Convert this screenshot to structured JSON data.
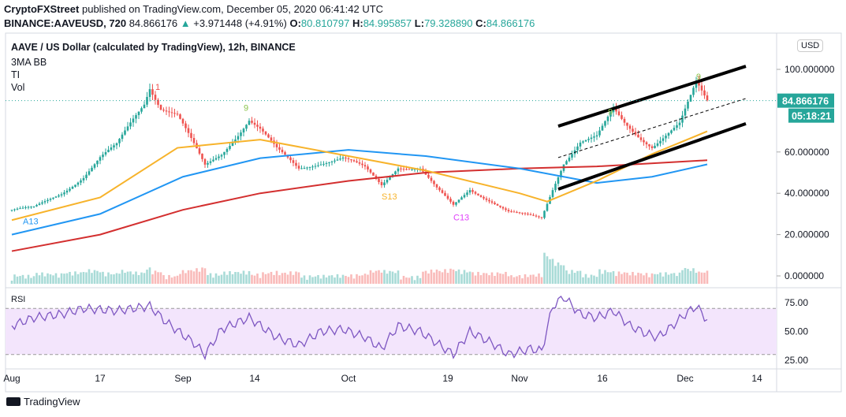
{
  "header": {
    "publisher": "CryptoFXStreet",
    "published_text": "published on TradingView.com, December 05, 2020 06:41:42 UTC",
    "symbol": "BINANCE:AAVEUSD, 720",
    "last": "84.866176",
    "change": "+3.971448 (+4.91%)",
    "o_label": "O:",
    "o": "80.810797",
    "h_label": "H:",
    "h": "84.995857",
    "l_label": "L:",
    "l": "79.328890",
    "c_label": "C:",
    "c": "84.866176"
  },
  "legend": {
    "title": "AAVE / US Dollar (calculated by TradingView), 12h, BINANCE",
    "ind1": "3MA BB",
    "ind2": "TI",
    "ind3": "Vol"
  },
  "currency_button": "USD",
  "price_badge": "84.866176",
  "countdown": "05:18:21",
  "rsi_label": "RSI",
  "footer_logo": "TradingView",
  "colors": {
    "up": "#26a69a",
    "down": "#ef5350",
    "ma_orange": "#f7b32b",
    "ma_blue": "#2196f3",
    "ma_red": "#d32f2f",
    "rsi": "#7e57c2",
    "rsi_band": "#f3e5fc"
  },
  "chart_data": {
    "type": "candlestick",
    "x_ticks": [
      {
        "date": "2020-08-01",
        "label": "Aug"
      },
      {
        "date": "2020-08-17",
        "label": "17"
      },
      {
        "date": "2020-09-01",
        "label": "Sep"
      },
      {
        "date": "2020-09-14",
        "label": "14"
      },
      {
        "date": "2020-10-01",
        "label": "Oct"
      },
      {
        "date": "2020-10-19",
        "label": "19"
      },
      {
        "date": "2020-11-01",
        "label": "Nov"
      },
      {
        "date": "2020-11-16",
        "label": "16"
      },
      {
        "date": "2020-12-01",
        "label": "Dec"
      },
      {
        "date": "2020-12-14",
        "label": "14"
      }
    ],
    "y_ticks": [
      {
        "v": 100,
        "label": "100.000000"
      },
      {
        "v": 60,
        "label": "60.000000"
      },
      {
        "v": 40,
        "label": "40.000000"
      },
      {
        "v": 20,
        "label": "20.000000"
      },
      {
        "v": 0,
        "label": "0.000000"
      }
    ],
    "ylim": [
      0,
      100
    ],
    "close_series": [
      [
        "2020-08-01",
        32
      ],
      [
        "2020-08-05",
        33
      ],
      [
        "2020-08-10",
        40
      ],
      [
        "2020-08-14",
        48
      ],
      [
        "2020-08-17",
        57
      ],
      [
        "2020-08-20",
        63
      ],
      [
        "2020-08-23",
        76
      ],
      [
        "2020-08-25",
        84
      ],
      [
        "2020-08-26",
        92
      ],
      [
        "2020-08-28",
        82
      ],
      [
        "2020-08-31",
        78
      ],
      [
        "2020-09-03",
        63
      ],
      [
        "2020-09-05",
        53
      ],
      [
        "2020-09-08",
        59
      ],
      [
        "2020-09-11",
        69
      ],
      [
        "2020-09-13",
        76
      ],
      [
        "2020-09-15",
        71
      ],
      [
        "2020-09-18",
        61
      ],
      [
        "2020-09-22",
        52
      ],
      [
        "2020-09-26",
        55
      ],
      [
        "2020-09-30",
        57
      ],
      [
        "2020-10-04",
        52
      ],
      [
        "2020-10-07",
        44
      ],
      [
        "2020-10-10",
        53
      ],
      [
        "2020-10-14",
        52
      ],
      [
        "2020-10-17",
        42
      ],
      [
        "2020-10-20",
        34
      ],
      [
        "2020-10-23",
        42
      ],
      [
        "2020-10-27",
        36
      ],
      [
        "2020-10-30",
        31
      ],
      [
        "2020-11-03",
        29
      ],
      [
        "2020-11-05",
        28
      ],
      [
        "2020-11-07",
        42
      ],
      [
        "2020-11-09",
        55
      ],
      [
        "2020-11-12",
        65
      ],
      [
        "2020-11-15",
        67
      ],
      [
        "2020-11-18",
        80
      ],
      [
        "2020-11-20",
        74
      ],
      [
        "2020-11-23",
        67
      ],
      [
        "2020-11-25",
        63
      ],
      [
        "2020-11-27",
        67
      ],
      [
        "2020-11-30",
        73
      ],
      [
        "2020-12-02",
        86
      ],
      [
        "2020-12-03",
        93
      ],
      [
        "2020-12-05",
        84.87
      ]
    ],
    "ma_orange": [
      [
        "2020-08-01",
        27
      ],
      [
        "2020-08-17",
        38
      ],
      [
        "2020-08-31",
        62
      ],
      [
        "2020-09-15",
        66
      ],
      [
        "2020-10-01",
        58
      ],
      [
        "2020-10-15",
        51
      ],
      [
        "2020-11-01",
        40
      ],
      [
        "2020-11-06",
        36
      ],
      [
        "2020-11-15",
        46
      ],
      [
        "2020-11-25",
        59
      ],
      [
        "2020-12-05",
        70
      ]
    ],
    "ma_blue": [
      [
        "2020-08-01",
        20
      ],
      [
        "2020-08-17",
        30
      ],
      [
        "2020-09-01",
        48
      ],
      [
        "2020-09-15",
        57
      ],
      [
        "2020-10-01",
        61
      ],
      [
        "2020-10-15",
        58
      ],
      [
        "2020-11-01",
        52
      ],
      [
        "2020-11-15",
        45
      ],
      [
        "2020-11-25",
        48
      ],
      [
        "2020-12-05",
        54
      ]
    ],
    "ma_red": [
      [
        "2020-08-01",
        12
      ],
      [
        "2020-08-17",
        20
      ],
      [
        "2020-09-01",
        32
      ],
      [
        "2020-09-15",
        40
      ],
      [
        "2020-10-01",
        46
      ],
      [
        "2020-10-15",
        50
      ],
      [
        "2020-11-01",
        52
      ],
      [
        "2020-11-15",
        53
      ],
      [
        "2020-12-05",
        56
      ]
    ],
    "channel_upper": [
      [
        "2020-11-08",
        72.5
      ],
      [
        "2020-12-12",
        101.5
      ]
    ],
    "channel_lower": [
      [
        "2020-11-08",
        42
      ],
      [
        "2020-12-12",
        73.7
      ]
    ],
    "channel_mid_dashed": [
      [
        "2020-11-08",
        57.3
      ],
      [
        "2020-12-12",
        85.9
      ]
    ],
    "last_price": 84.866176,
    "annotations": [
      {
        "date": "2020-08-03",
        "v": 25,
        "text": "A13",
        "color": "#2196f3"
      },
      {
        "date": "2020-08-27",
        "v": 90,
        "text": "1",
        "color": "#ef5350"
      },
      {
        "date": "2020-09-12",
        "v": 80,
        "text": "9",
        "color": "#8bc34a"
      },
      {
        "date": "2020-10-07",
        "v": 37,
        "text": "S13",
        "color": "#f7b32b"
      },
      {
        "date": "2020-10-20",
        "v": 27,
        "text": "C13",
        "color": "#e040fb"
      },
      {
        "date": "2020-11-17",
        "v": 78,
        "text": "9",
        "color": "#8bc34a"
      },
      {
        "date": "2020-12-03",
        "v": 95,
        "text": "9",
        "color": "#8bc34a"
      }
    ],
    "rsi": {
      "y_ticks": [
        {
          "v": 75,
          "label": "75.00"
        },
        {
          "v": 50,
          "label": "50.00"
        },
        {
          "v": 25,
          "label": "25.00"
        }
      ],
      "band": [
        30,
        70
      ],
      "values": [
        [
          "2020-08-01",
          55
        ],
        [
          "2020-08-05",
          62
        ],
        [
          "2020-08-10",
          65
        ],
        [
          "2020-08-14",
          70
        ],
        [
          "2020-08-20",
          68
        ],
        [
          "2020-08-26",
          72
        ],
        [
          "2020-08-29",
          58
        ],
        [
          "2020-09-03",
          40
        ],
        [
          "2020-09-05",
          30
        ],
        [
          "2020-09-08",
          52
        ],
        [
          "2020-09-13",
          62
        ],
        [
          "2020-09-18",
          45
        ],
        [
          "2020-09-22",
          38
        ],
        [
          "2020-09-26",
          50
        ],
        [
          "2020-09-30",
          52
        ],
        [
          "2020-10-04",
          45
        ],
        [
          "2020-10-07",
          35
        ],
        [
          "2020-10-10",
          55
        ],
        [
          "2020-10-14",
          50
        ],
        [
          "2020-10-17",
          40
        ],
        [
          "2020-10-20",
          30
        ],
        [
          "2020-10-23",
          50
        ],
        [
          "2020-10-27",
          40
        ],
        [
          "2020-10-30",
          30
        ],
        [
          "2020-11-03",
          35
        ],
        [
          "2020-11-05",
          33
        ],
        [
          "2020-11-07",
          72
        ],
        [
          "2020-11-09",
          80
        ],
        [
          "2020-11-12",
          65
        ],
        [
          "2020-11-15",
          62
        ],
        [
          "2020-11-18",
          68
        ],
        [
          "2020-11-21",
          55
        ],
        [
          "2020-11-24",
          48
        ],
        [
          "2020-11-26",
          45
        ],
        [
          "2020-11-28",
          52
        ],
        [
          "2020-12-01",
          65
        ],
        [
          "2020-12-03",
          72
        ],
        [
          "2020-12-05",
          60
        ]
      ]
    }
  }
}
